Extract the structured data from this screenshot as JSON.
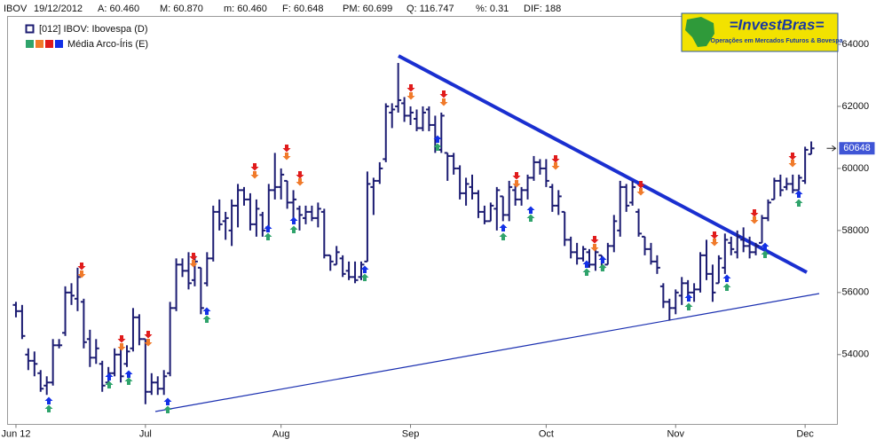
{
  "chart_data": {
    "type": "ohlc",
    "header": [
      "IBOV",
      "19/12/2012",
      "A: 60.460",
      "M: 60.870",
      "m: 60.460",
      "F: 60.648",
      "PM: 60.699",
      "Q: 116.747",
      "%: 0.31",
      "DIF: 188"
    ],
    "legend": [
      "[012] IBOV: Ibovespa (D)",
      "Média Arco-Íris (E)"
    ],
    "logo": {
      "title": "=InvestBras=",
      "subtitle": "Operações em Mercados Futuros & Bovespa"
    },
    "color": "#1c1c72",
    "ylim": [
      51750,
      64900
    ],
    "yticks": [
      54000,
      56000,
      58000,
      60000,
      62000,
      64000
    ],
    "categories": [
      "Jun 12",
      null,
      null,
      null,
      null,
      null,
      null,
      null,
      null,
      null,
      null,
      null,
      null,
      null,
      null,
      null,
      null,
      null,
      null,
      null,
      null,
      "Jul",
      null,
      null,
      null,
      null,
      null,
      null,
      null,
      null,
      null,
      null,
      null,
      null,
      null,
      null,
      null,
      null,
      null,
      null,
      null,
      null,
      null,
      "Aug",
      null,
      null,
      null,
      null,
      null,
      null,
      null,
      null,
      null,
      null,
      null,
      null,
      null,
      null,
      null,
      null,
      null,
      null,
      null,
      null,
      "Sep",
      null,
      null,
      null,
      null,
      null,
      null,
      null,
      null,
      null,
      null,
      null,
      null,
      null,
      null,
      null,
      null,
      null,
      null,
      null,
      null,
      null,
      "Oct",
      null,
      null,
      null,
      null,
      null,
      null,
      null,
      null,
      null,
      null,
      null,
      null,
      null,
      null,
      null,
      null,
      null,
      null,
      null,
      null,
      "Nov",
      null,
      null,
      null,
      null,
      null,
      null,
      null,
      null,
      null,
      null,
      null,
      null,
      null,
      null,
      null,
      null,
      null,
      null,
      null,
      null,
      "Dec",
      null,
      null
    ],
    "ohlc": [
      [
        55600,
        55700,
        55200,
        55400
      ],
      [
        55400,
        55600,
        54500,
        54600
      ],
      [
        54000,
        54200,
        53500,
        53800
      ],
      [
        53800,
        54100,
        53300,
        53700
      ],
      [
        53400,
        53500,
        52800,
        52900
      ],
      [
        53000,
        53300,
        52700,
        53100
      ],
      [
        53100,
        54500,
        53000,
        54300
      ],
      [
        54300,
        54500,
        54200,
        54300
      ],
      [
        54700,
        56200,
        54600,
        56000
      ],
      [
        56000,
        56300,
        55600,
        55900
      ],
      [
        55800,
        56800,
        55400,
        56500
      ],
      [
        55700,
        55800,
        54200,
        54400
      ],
      [
        54500,
        54800,
        53600,
        53900
      ],
      [
        53900,
        54500,
        53700,
        54200
      ],
      [
        53700,
        53800,
        52800,
        53000
      ],
      [
        53100,
        53600,
        53000,
        53400
      ],
      [
        53400,
        54200,
        53300,
        54000
      ],
      [
        54000,
        54300,
        53100,
        53300
      ],
      [
        53700,
        54300,
        53600,
        54100
      ],
      [
        54200,
        55500,
        54100,
        55200
      ],
      [
        55200,
        55300,
        54300,
        54500
      ],
      [
        54500,
        54500,
        52400,
        52800
      ],
      [
        52800,
        53400,
        52700,
        53100
      ],
      [
        53100,
        53300,
        52700,
        52900
      ],
      [
        52900,
        53500,
        52700,
        53300
      ],
      [
        53400,
        55700,
        53300,
        55500
      ],
      [
        55500,
        57100,
        55400,
        56900
      ],
      [
        56900,
        57100,
        56500,
        56700
      ],
      [
        56700,
        57300,
        56100,
        56300
      ],
      [
        56400,
        57200,
        56200,
        57000
      ],
      [
        56800,
        56800,
        55300,
        55500
      ],
      [
        56300,
        57300,
        56200,
        57100
      ],
      [
        57100,
        58800,
        57000,
        58600
      ],
      [
        58600,
        59000,
        58000,
        58200
      ],
      [
        58300,
        58600,
        57700,
        58400
      ],
      [
        58000,
        59000,
        57500,
        58800
      ],
      [
        58800,
        59500,
        58100,
        59300
      ],
      [
        59300,
        59400,
        58800,
        59000
      ],
      [
        59000,
        59200,
        58000,
        58200
      ],
      [
        58200,
        59000,
        57800,
        58700
      ],
      [
        58500,
        58600,
        57800,
        58000
      ],
      [
        58100,
        59500,
        58000,
        59300
      ],
      [
        59300,
        60500,
        59000,
        59400
      ],
      [
        59400,
        60000,
        59000,
        59800
      ],
      [
        59600,
        59600,
        58700,
        58900
      ],
      [
        58900,
        59300,
        58300,
        59000
      ],
      [
        58700,
        58800,
        58000,
        58500
      ],
      [
        58400,
        58800,
        58200,
        58600
      ],
      [
        58600,
        58800,
        58300,
        58400
      ],
      [
        58400,
        58900,
        58100,
        58700
      ],
      [
        58600,
        58700,
        57100,
        57200
      ],
      [
        57200,
        57200,
        56700,
        57000
      ],
      [
        56900,
        57500,
        56900,
        57300
      ],
      [
        57100,
        57200,
        56500,
        56600
      ],
      [
        56700,
        57000,
        56400,
        56500
      ],
      [
        56500,
        57000,
        56300,
        56400
      ],
      [
        56500,
        57000,
        56400,
        56900
      ],
      [
        57000,
        59900,
        57000,
        59500
      ],
      [
        59400,
        59700,
        58500,
        59600
      ],
      [
        59600,
        60200,
        59500,
        60000
      ],
      [
        60300,
        62100,
        60200,
        62000
      ],
      [
        61800,
        62100,
        61300,
        61900
      ],
      [
        62000,
        63400,
        61800,
        62200
      ],
      [
        62100,
        62300,
        61500,
        61700
      ],
      [
        61700,
        62000,
        61400,
        61800
      ],
      [
        61600,
        61900,
        61200,
        61300
      ],
      [
        61300,
        62000,
        61200,
        61800
      ],
      [
        61900,
        62000,
        61200,
        61400
      ],
      [
        61400,
        61700,
        60500,
        60700
      ],
      [
        60600,
        61800,
        60500,
        61700
      ],
      [
        60500,
        60500,
        59600,
        60400
      ],
      [
        60400,
        60500,
        59800,
        60000
      ],
      [
        60000,
        60100,
        59000,
        59200
      ],
      [
        59200,
        59700,
        58800,
        59500
      ],
      [
        59400,
        59800,
        59000,
        59200
      ],
      [
        59200,
        59300,
        58400,
        58600
      ],
      [
        58600,
        58800,
        58200,
        58300
      ],
      [
        58300,
        58900,
        58300,
        58800
      ],
      [
        58700,
        59400,
        58000,
        59300
      ],
      [
        59100,
        59100,
        58300,
        58500
      ],
      [
        58500,
        59600,
        58300,
        59400
      ],
      [
        59300,
        59500,
        58800,
        59000
      ],
      [
        59000,
        59400,
        58800,
        59300
      ],
      [
        59300,
        59800,
        59000,
        59700
      ],
      [
        59700,
        60400,
        59600,
        60200
      ],
      [
        60200,
        60300,
        59800,
        60000
      ],
      [
        60000,
        60300,
        59400,
        59600
      ],
      [
        59400,
        59500,
        58600,
        58800
      ],
      [
        58800,
        59300,
        58500,
        59100
      ],
      [
        58600,
        58600,
        57500,
        57700
      ],
      [
        57700,
        57800,
        57100,
        57300
      ],
      [
        57300,
        57600,
        56900,
        57100
      ],
      [
        57100,
        57500,
        57000,
        57400
      ],
      [
        57300,
        57400,
        56800,
        56900
      ],
      [
        56900,
        57400,
        56700,
        57300
      ],
      [
        57200,
        57200,
        56700,
        56800
      ],
      [
        56900,
        57600,
        56900,
        57500
      ],
      [
        57500,
        58500,
        57300,
        58300
      ],
      [
        58000,
        59600,
        57800,
        59400
      ],
      [
        59400,
        59500,
        58600,
        58800
      ],
      [
        58900,
        59600,
        58800,
        59400
      ],
      [
        58600,
        58700,
        57800,
        57900
      ],
      [
        57800,
        57800,
        57200,
        57400
      ],
      [
        57400,
        57600,
        56900,
        57000
      ],
      [
        57000,
        57200,
        56600,
        56800
      ],
      [
        56200,
        56300,
        55500,
        55700
      ],
      [
        55700,
        55800,
        55100,
        55500
      ],
      [
        55500,
        56100,
        55300,
        56000
      ],
      [
        55900,
        56500,
        55600,
        56300
      ],
      [
        56300,
        56400,
        55800,
        56000
      ],
      [
        56000,
        56300,
        55700,
        56100
      ],
      [
        56100,
        57300,
        56000,
        57200
      ],
      [
        57200,
        57700,
        56400,
        56600
      ],
      [
        56600,
        56900,
        55700,
        56000
      ],
      [
        56300,
        57200,
        56300,
        57100
      ],
      [
        56800,
        57900,
        56600,
        57700
      ],
      [
        57600,
        57800,
        57200,
        57400
      ],
      [
        57300,
        58000,
        57100,
        57800
      ],
      [
        57700,
        58100,
        57300,
        57500
      ],
      [
        57500,
        57800,
        57100,
        57300
      ],
      [
        57300,
        57600,
        57200,
        57500
      ],
      [
        57600,
        58500,
        57600,
        58400
      ],
      [
        58400,
        59000,
        58300,
        58900
      ],
      [
        59000,
        59700,
        59000,
        59600
      ],
      [
        59600,
        59800,
        59100,
        59300
      ],
      [
        59400,
        59700,
        59300,
        59500
      ],
      [
        59500,
        59800,
        59200,
        59300
      ],
      [
        59300,
        59800,
        59300,
        59700
      ],
      [
        59600,
        60700,
        59500,
        60600
      ],
      [
        60460,
        60870,
        60460,
        60648
      ]
    ]
  }
}
